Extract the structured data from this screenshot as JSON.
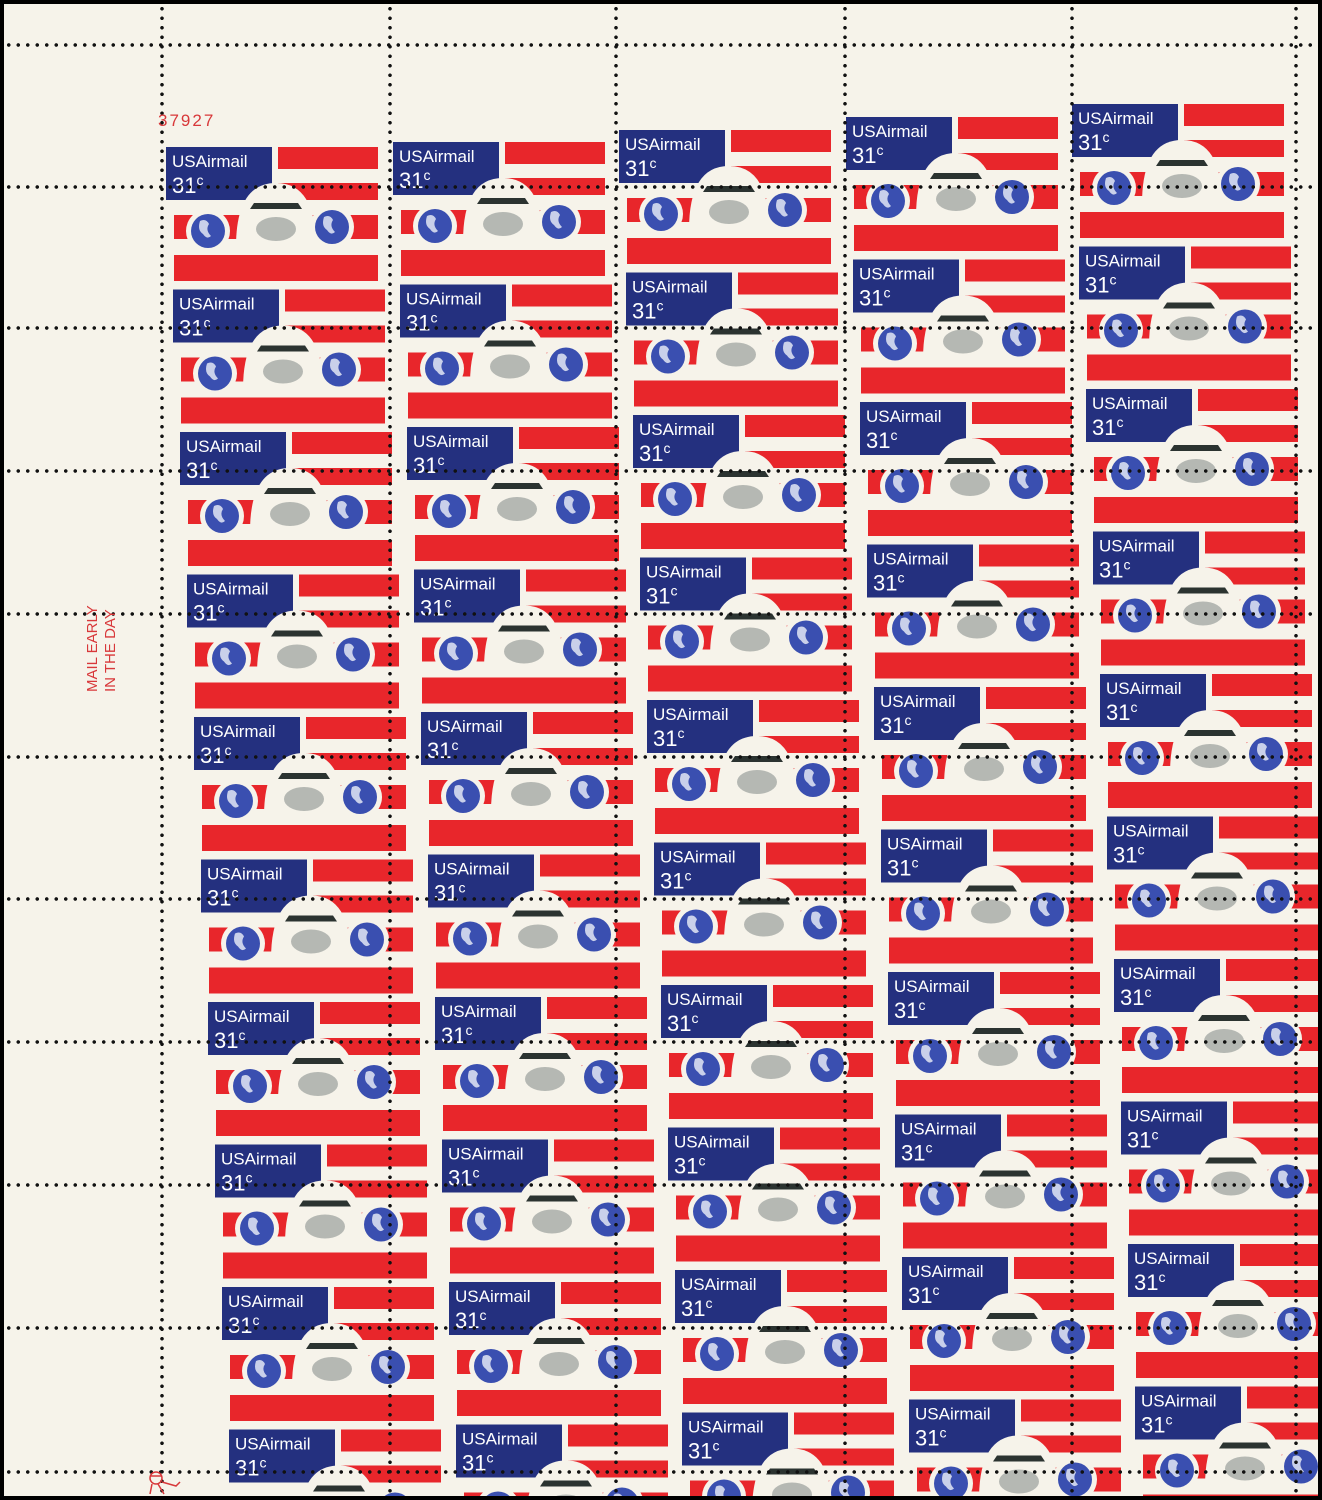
{
  "sheet": {
    "plate_number": "37927",
    "inscription_line1": "MAIL EARLY",
    "inscription_line2": "IN THE DAY",
    "columns": 5,
    "rows": 10
  },
  "stamp": {
    "title": "USAirmail",
    "denomination": "31",
    "unit": "c",
    "colors": {
      "blue": "#24307f",
      "red": "#e8262b",
      "gray": "#b5b8b3",
      "window": "#2b3330",
      "paper": "#f6f3ea"
    }
  }
}
